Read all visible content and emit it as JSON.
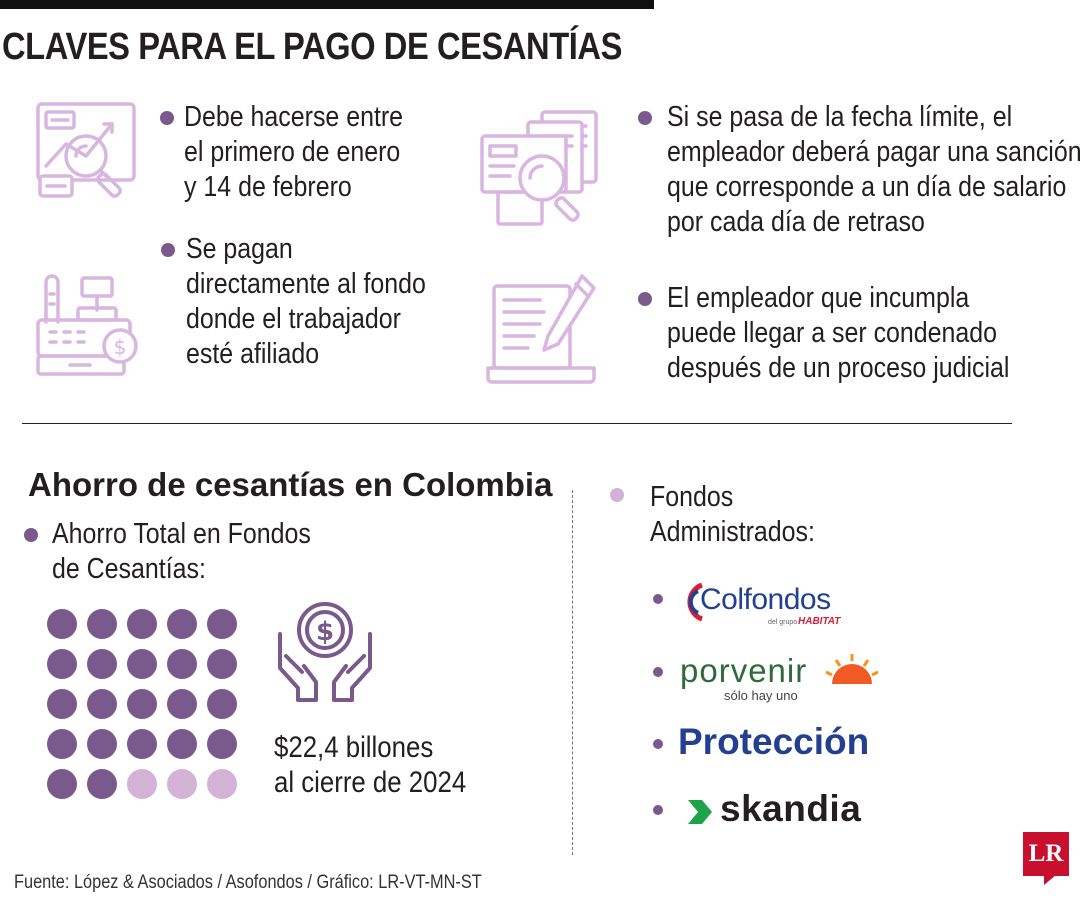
{
  "title": "CLAVES PARA EL PAGO DE CESANTÍAS",
  "keys": [
    {
      "icon": "magnifier-chart-icon",
      "lines": [
        "Debe hacerse entre",
        "el primero de enero",
        "y 14 de febrero"
      ]
    },
    {
      "icon": "cash-register-icon",
      "lines": [
        "Se pagan",
        "directamente al fondo",
        "donde el trabajador",
        "esté afiliado"
      ]
    },
    {
      "icon": "documents-search-icon",
      "lines": [
        "Si se pasa de la fecha límite, el",
        "empleador deberá pagar una sanción",
        "que corresponde a un día de salario",
        "por cada día de retraso"
      ]
    },
    {
      "icon": "contract-pen-icon",
      "lines": [
        "El empleador que incumpla",
        "puede llegar a ser condenado",
        "después de un proceso judicial"
      ]
    }
  ],
  "savings": {
    "subtitle": "Ahorro de cesantías en Colombia",
    "label_lines": [
      "Ahorro Total en Fondos",
      "de Cesantías:"
    ],
    "filled_dots": 22,
    "total_dots": 25,
    "amount": "$22,4 billones",
    "amount_note": "al cierre de 2024"
  },
  "funds": {
    "label_lines": [
      "Fondos",
      "Administrados:"
    ],
    "colfondos": {
      "name": "Colfondos",
      "tagline_small": "del grupo",
      "tagline_brand": "HABITAT"
    },
    "porvenir": {
      "name": "porvenir",
      "tagline": "sólo hay uno"
    },
    "proteccion": {
      "name": "Protección"
    },
    "skandia": {
      "name": "skandia"
    }
  },
  "colors": {
    "accent_dark": "#7a5a8c",
    "accent_light": "#d2b3d6",
    "icon_stroke": "#d9b6df",
    "proteccion": "#233f8f",
    "skandia_green": "#1fa34a",
    "lr_red": "#c8102e"
  },
  "source": "Fuente: López & Asociados / Asofondos / Gráfico: LR-VT-MN-ST",
  "brand_logo": "LR"
}
